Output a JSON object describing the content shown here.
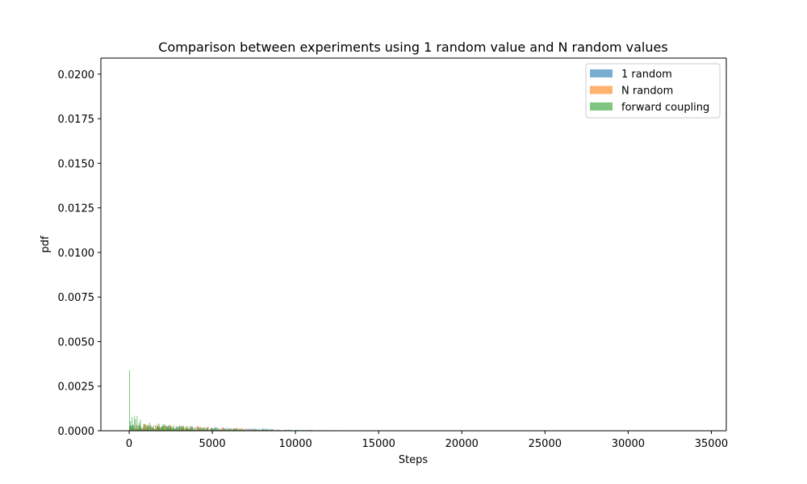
{
  "chart_data": {
    "type": "bar",
    "title": "Comparison between experiments using 1 random value and N random values",
    "xlabel": "Steps",
    "ylabel": "pdf",
    "xlim": [
      -1700,
      35900
    ],
    "ylim": [
      0,
      0.0209
    ],
    "x_ticks": [
      0,
      5000,
      10000,
      15000,
      20000,
      25000,
      30000,
      35000
    ],
    "y_ticks": [
      0.0,
      0.0025,
      0.005,
      0.0075,
      0.01,
      0.0125,
      0.015,
      0.0175,
      0.02
    ],
    "x_tick_labels": [
      "0",
      "5000",
      "10000",
      "15000",
      "20000",
      "25000",
      "30000",
      "35000"
    ],
    "y_tick_labels": [
      "0.0000",
      "0.0025",
      "0.0050",
      "0.0075",
      "0.0100",
      "0.0125",
      "0.0150",
      "0.0175",
      "0.0200"
    ],
    "grid": false,
    "legend_position": "top-right",
    "alpha": 0.6,
    "bin_width": 50,
    "series": [
      {
        "name": "1 random",
        "color": "#1f77b4",
        "histogram_shape": "noisy plateau",
        "x": [
          0,
          500,
          1000,
          2000,
          3000,
          4000,
          5000,
          6000,
          7000,
          8000,
          9000,
          10000,
          12000,
          15000,
          20000,
          26000
        ],
        "y": [
          0.00025,
          0.00024,
          0.00023,
          0.0002,
          0.00018,
          0.00016,
          0.00014,
          0.00012,
          0.0001,
          8e-05,
          6e-05,
          4e-05,
          2e-05,
          1e-05,
          5e-06,
          0.0
        ]
      },
      {
        "name": "N random",
        "color": "#ff7f0e",
        "histogram_shape": "noisy plateau",
        "x": [
          0,
          500,
          1000,
          2000,
          3000,
          4000,
          5000,
          6000,
          7000,
          8000,
          9000,
          10000,
          13000,
          17000
        ],
        "y": [
          0.00026,
          0.00026,
          0.00024,
          0.00022,
          0.0002,
          0.00018,
          0.00014,
          0.00011,
          8e-05,
          5e-05,
          3e-05,
          2e-05,
          1e-05,
          0.0
        ]
      },
      {
        "name": "forward coupling",
        "color": "#2ca02c",
        "histogram_shape": "decay",
        "x": [
          0,
          50,
          100,
          200,
          400,
          600,
          1000,
          2000,
          3000,
          4000,
          5000,
          6000,
          8000,
          10000,
          15000,
          20000,
          25000,
          30000,
          34000
        ],
        "y": [
          0.0034,
          0.0013,
          0.0011,
          0.0008,
          0.0006,
          0.00045,
          0.00035,
          0.00025,
          0.0002,
          0.00015,
          0.00011,
          8e-05,
          5e-05,
          3e-05,
          1e-05,
          5e-06,
          3e-06,
          2e-06,
          0.0
        ]
      }
    ]
  }
}
